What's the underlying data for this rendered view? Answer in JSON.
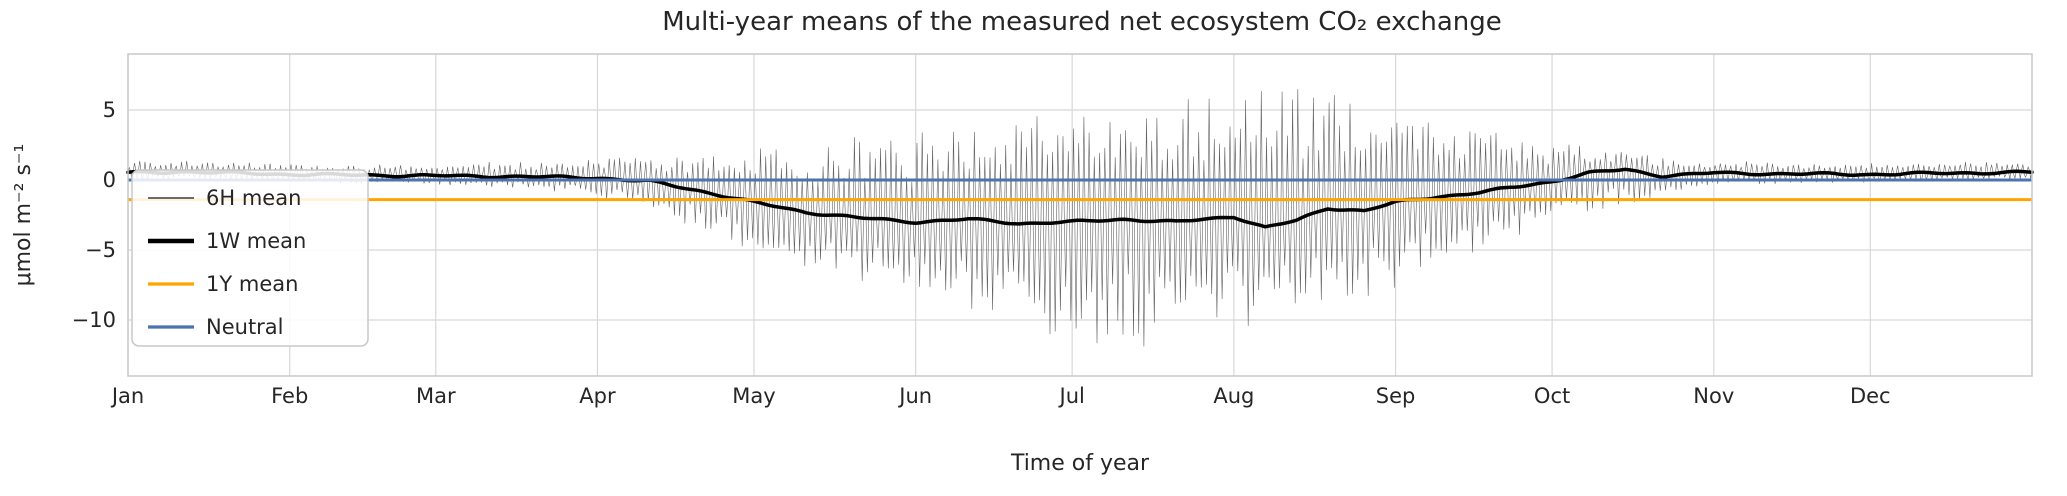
{
  "figure": {
    "background": "#ffffff",
    "text_color": "#262626",
    "grid_color": "#d8d8d8",
    "spine_color": "#c8c8c8"
  },
  "chart_data": {
    "type": "line",
    "title": "Multi-year means of the measured net ecosystem CO₂ exchange",
    "xlabel": "Time of year",
    "ylabel": "μmol m⁻² s⁻¹",
    "grid": true,
    "xlim": [
      0,
      365
    ],
    "ylim": [
      -14,
      9
    ],
    "xticks": {
      "positions": [
        0,
        31,
        59,
        90,
        120,
        151,
        181,
        212,
        243,
        273,
        304,
        334
      ],
      "labels": [
        "Jan",
        "Feb",
        "Mar",
        "Apr",
        "May",
        "Jun",
        "Jul",
        "Aug",
        "Sep",
        "Oct",
        "Nov",
        "Dec"
      ]
    },
    "yticks": {
      "values": [
        5,
        0,
        -5,
        -10
      ],
      "labels": [
        "5",
        "0",
        "−5",
        "−10"
      ]
    },
    "sample_days": [
      0,
      10,
      20,
      31,
      45,
      59,
      75,
      90,
      100,
      110,
      120,
      130,
      140,
      151,
      161,
      171,
      181,
      191,
      201,
      212,
      218,
      224,
      230,
      237,
      243,
      251,
      259,
      266,
      273,
      280,
      287,
      294,
      304,
      315,
      334,
      350,
      365
    ],
    "series": [
      {
        "name": "6H mean",
        "type": "diurnal-band",
        "color": "#3c3c3c",
        "linewidth": 0.6,
        "opacity": 0.8,
        "samples_per_day": 4,
        "center_series": "1W mean",
        "envelope_top": [
          1.3,
          1.5,
          1.3,
          1.2,
          1.1,
          1.2,
          1.3,
          1.6,
          1.7,
          1.9,
          2.1,
          2.5,
          3.0,
          3.8,
          4.3,
          4.8,
          5.2,
          5.5,
          6.0,
          6.8,
          7.0,
          7.6,
          7.2,
          6.2,
          5.6,
          4.6,
          4.0,
          3.3,
          2.8,
          2.4,
          2.1,
          1.8,
          1.4,
          1.3,
          1.2,
          1.3,
          1.4
        ],
        "envelope_bottom": [
          -0.1,
          0.0,
          -0.1,
          -0.2,
          -0.3,
          -0.4,
          -0.6,
          -1.2,
          -2.2,
          -3.6,
          -5.0,
          -6.3,
          -7.3,
          -8.6,
          -9.6,
          -10.6,
          -12.3,
          -11.6,
          -11.0,
          -10.8,
          -10.2,
          -9.8,
          -9.2,
          -8.4,
          -7.6,
          -6.2,
          -5.2,
          -4.2,
          -3.4,
          -2.6,
          -2.0,
          -1.2,
          -0.5,
          -0.3,
          -0.2,
          -0.1,
          0.0
        ]
      },
      {
        "name": "1W mean",
        "type": "line",
        "color": "#000000",
        "linewidth": 3.5,
        "values": [
          0.5,
          0.6,
          0.5,
          0.4,
          0.35,
          0.3,
          0.25,
          0.15,
          -0.1,
          -0.8,
          -1.6,
          -2.3,
          -2.7,
          -3.0,
          -2.8,
          -3.1,
          -3.0,
          -2.8,
          -3.0,
          -2.6,
          -3.4,
          -2.9,
          -2.0,
          -2.2,
          -1.6,
          -1.2,
          -0.9,
          -0.5,
          -0.1,
          0.5,
          0.75,
          0.3,
          0.5,
          0.45,
          0.4,
          0.5,
          0.55
        ]
      },
      {
        "name": "1Y mean",
        "type": "hline",
        "color": "#ffa500",
        "linewidth": 3,
        "value": -1.4
      },
      {
        "name": "Neutral",
        "type": "hline",
        "color": "#4C72B0",
        "linewidth": 3,
        "value": 0
      }
    ],
    "legend": {
      "location": "center left",
      "items": [
        "6H mean",
        "1W mean",
        "1Y mean",
        "Neutral"
      ]
    }
  }
}
